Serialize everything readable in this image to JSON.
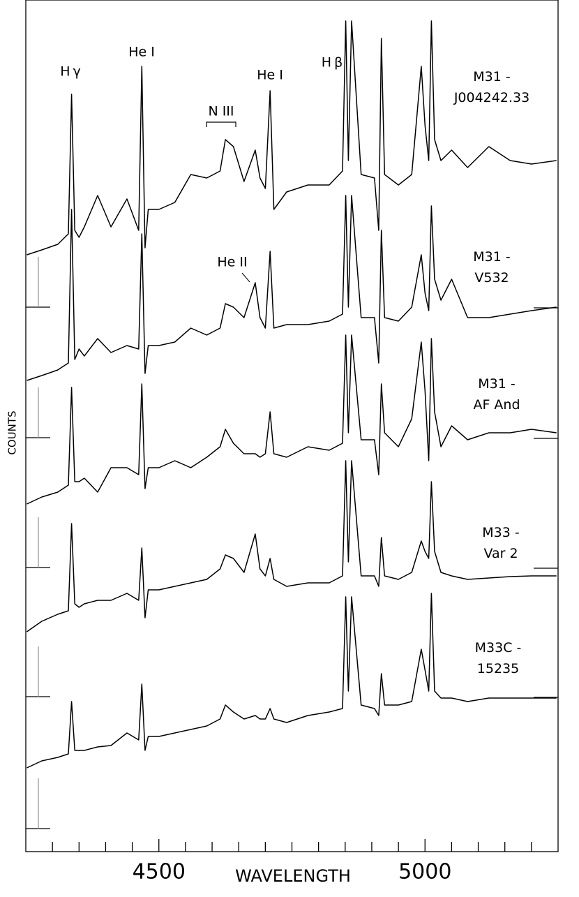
{
  "chart_data": {
    "type": "line",
    "x_label": "WAVELENGTH",
    "y_label": "COUNTS",
    "xlim": [
      4250,
      5250
    ],
    "ylim": [
      0,
      122
    ],
    "xticks": [
      4500,
      5000
    ],
    "xminorticks": [
      4300,
      4350,
      4400,
      4450,
      4550,
      4600,
      4650,
      4700,
      4750,
      4800,
      4850,
      4900,
      4950,
      5050,
      5100,
      5150,
      5200
    ],
    "annotations": [
      "Hγ",
      "He I",
      "N III",
      "He I",
      "Hβ",
      "He II"
    ],
    "x": [
      4252,
      4280,
      4310,
      4330,
      4336,
      4342,
      4350,
      4360,
      4385,
      4410,
      4440,
      4462,
      4468,
      4474,
      4480,
      4500,
      4530,
      4560,
      4590,
      4615,
      4625,
      4640,
      4660,
      4681,
      4690,
      4700,
      4709,
      4716,
      4740,
      4780,
      4820,
      4845,
      4851,
      4856,
      4862,
      4880,
      4905,
      4913,
      4918,
      4924,
      4950,
      4975,
      4993,
      5000,
      5007,
      5012,
      5018,
      5030,
      5050,
      5080,
      5120,
      5160,
      5200,
      5247
    ],
    "series": [
      {
        "name": "M31 -\nJ004242.33",
        "color": "#000000",
        "values": [
          85.5,
          86.2,
          87,
          88.5,
          108.5,
          89,
          88,
          89.5,
          94,
          89.5,
          93.5,
          89,
          112.5,
          86.5,
          92,
          92,
          93,
          97,
          96.5,
          97.5,
          102,
          101,
          96,
          100.5,
          96.5,
          95,
          109,
          92,
          94.5,
          95.5,
          95.5,
          97.5,
          119,
          99,
          119,
          97,
          96.5,
          89,
          116.5,
          97,
          95.5,
          97,
          112.5,
          104,
          99,
          119,
          102,
          99,
          100.5,
          98,
          101,
          99,
          98.5,
          99
        ]
      },
      {
        "name": "M31 -\nV532",
        "color": "#000000",
        "values": [
          67.5,
          68.2,
          69,
          70,
          92,
          70.5,
          72,
          71,
          73.5,
          71.5,
          72.5,
          72,
          88.5,
          68.5,
          72.5,
          72.5,
          73,
          75,
          74,
          75,
          78.5,
          78,
          76.5,
          81.5,
          76.5,
          75,
          86,
          75,
          75.5,
          75.5,
          76,
          77,
          94,
          78,
          94,
          76.5,
          76.5,
          70,
          89,
          76.5,
          76,
          78,
          85.5,
          80,
          77.5,
          92.5,
          82,
          79,
          82,
          76.5,
          76.5,
          77,
          77.5,
          78
        ]
      },
      {
        "name": "M31 -\nAF And",
        "color": "#000000",
        "values": [
          49.8,
          50.8,
          51.5,
          52.5,
          66.5,
          53,
          53,
          53.5,
          51.5,
          55,
          55,
          54,
          67,
          52,
          55,
          55,
          56,
          55,
          56.5,
          58,
          60.5,
          58.5,
          57,
          57,
          56.5,
          57,
          63,
          57,
          56.5,
          58,
          57.5,
          58.5,
          74,
          60,
          74,
          59,
          59,
          54,
          67,
          60,
          58,
          62,
          73,
          66,
          56,
          73.5,
          63,
          58,
          61,
          59,
          60,
          60,
          60.5,
          60
        ]
      },
      {
        "name": "M33 -\nVar 2",
        "color": "#000000",
        "values": [
          31.5,
          33,
          34,
          34.5,
          47,
          35.5,
          35,
          35.5,
          36,
          36,
          37,
          36,
          43.5,
          33.5,
          37.5,
          37.5,
          38,
          38.5,
          39,
          40.5,
          42.5,
          42,
          40,
          45.5,
          40.5,
          39.5,
          42,
          39,
          38,
          38.5,
          38.5,
          39.5,
          56,
          41.5,
          56,
          39.5,
          39.5,
          38,
          45,
          39.5,
          39,
          40,
          44.5,
          43,
          42,
          53,
          43,
          40,
          39.5,
          39,
          39.2,
          39.4,
          39.5,
          39.5
        ]
      },
      {
        "name": "M33C -\n15235",
        "color": "#000000",
        "values": [
          12,
          13,
          13.5,
          14,
          21.5,
          14.5,
          14.5,
          14.5,
          15,
          15.2,
          17,
          16,
          24,
          14.5,
          16.5,
          16.5,
          17,
          17.5,
          18,
          19,
          21,
          20,
          19,
          19.5,
          19,
          19,
          20.5,
          19,
          18.5,
          19.5,
          20,
          20.5,
          36.5,
          23,
          36.5,
          21,
          20.5,
          19.5,
          25.5,
          21,
          21,
          21.5,
          29,
          26,
          23,
          37,
          23,
          22,
          22,
          21.5,
          22,
          22,
          22,
          22
        ]
      }
    ]
  }
}
